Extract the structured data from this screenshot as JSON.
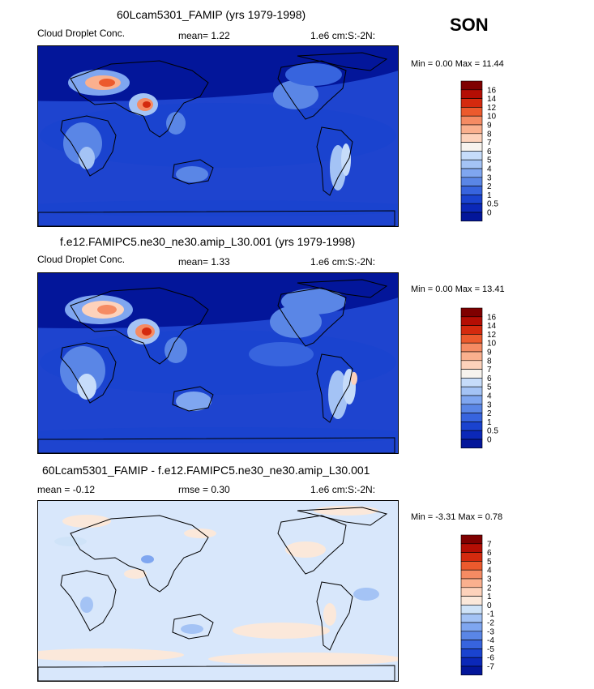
{
  "season": "SON",
  "panels": [
    {
      "title": "60Lcam5301_FAMIP (yrs 1979-1998)",
      "left": "Cloud Droplet Conc.",
      "mid": "mean=    1.22",
      "right": "1.e6 cm:S:-2N:",
      "minmax": "Min =     0.00  Max =   11.44",
      "levels": [
        "16",
        "14",
        "12",
        "10",
        "9",
        "8",
        "7",
        "6",
        "5",
        "4",
        "3",
        "2",
        "1",
        "0.5",
        "0"
      ],
      "colors": [
        "#7f0000",
        "#b40e04",
        "#d42a0e",
        "#ec5a2d",
        "#f58b63",
        "#fab08e",
        "#fdd2bb",
        "#f7f3ee",
        "#c6dcfa",
        "#a4c3f5",
        "#7fa6f0",
        "#5a86e6",
        "#3764de",
        "#1a43cf",
        "#0b28b8",
        "#03169a"
      ],
      "bg": "#1e44cf",
      "accent": "#5a86e6"
    },
    {
      "title": "f.e12.FAMIPC5.ne30_ne30.amip_L30.001 (yrs 1979-1998)",
      "left": "Cloud Droplet Conc.",
      "mid": "mean=    1.33",
      "right": "1.e6 cm:S:-2N:",
      "minmax": "Min =     0.00  Max =   13.41",
      "levels": [
        "16",
        "14",
        "12",
        "10",
        "9",
        "8",
        "7",
        "6",
        "5",
        "4",
        "3",
        "2",
        "1",
        "0.5",
        "0"
      ],
      "colors": [
        "#7f0000",
        "#b40e04",
        "#d42a0e",
        "#ec5a2d",
        "#f58b63",
        "#fab08e",
        "#fdd2bb",
        "#f7f3ee",
        "#c6dcfa",
        "#a4c3f5",
        "#7fa6f0",
        "#5a86e6",
        "#3764de",
        "#1a43cf",
        "#0b28b8",
        "#03169a"
      ],
      "bg": "#1e44cf",
      "accent": "#5a86e6"
    },
    {
      "title": "60Lcam5301_FAMIP - f.e12.FAMIPC5.ne30_ne30.amip_L30.001",
      "left": "mean =   -0.12",
      "mid": "rmse =     0.30",
      "right": "1.e6 cm:S:-2N:",
      "minmax": "Min =   -3.31  Max =    0.78",
      "levels": [
        "7",
        "6",
        "5",
        "4",
        "3",
        "2",
        "1",
        "0",
        "-1",
        "-2",
        "-3",
        "-4",
        "-5",
        "-6",
        "-7"
      ],
      "colors": [
        "#7f0000",
        "#b40e04",
        "#d42a0e",
        "#ec5a2d",
        "#f58b63",
        "#fab08e",
        "#fdd2bb",
        "#fbe8da",
        "#cfe3f8",
        "#a4c3f5",
        "#7fa6f0",
        "#5a86e6",
        "#3764de",
        "#1a43cf",
        "#0b28b8",
        "#03169a"
      ],
      "bg": "#d8e7fb",
      "accent": "#fde9d9"
    }
  ]
}
